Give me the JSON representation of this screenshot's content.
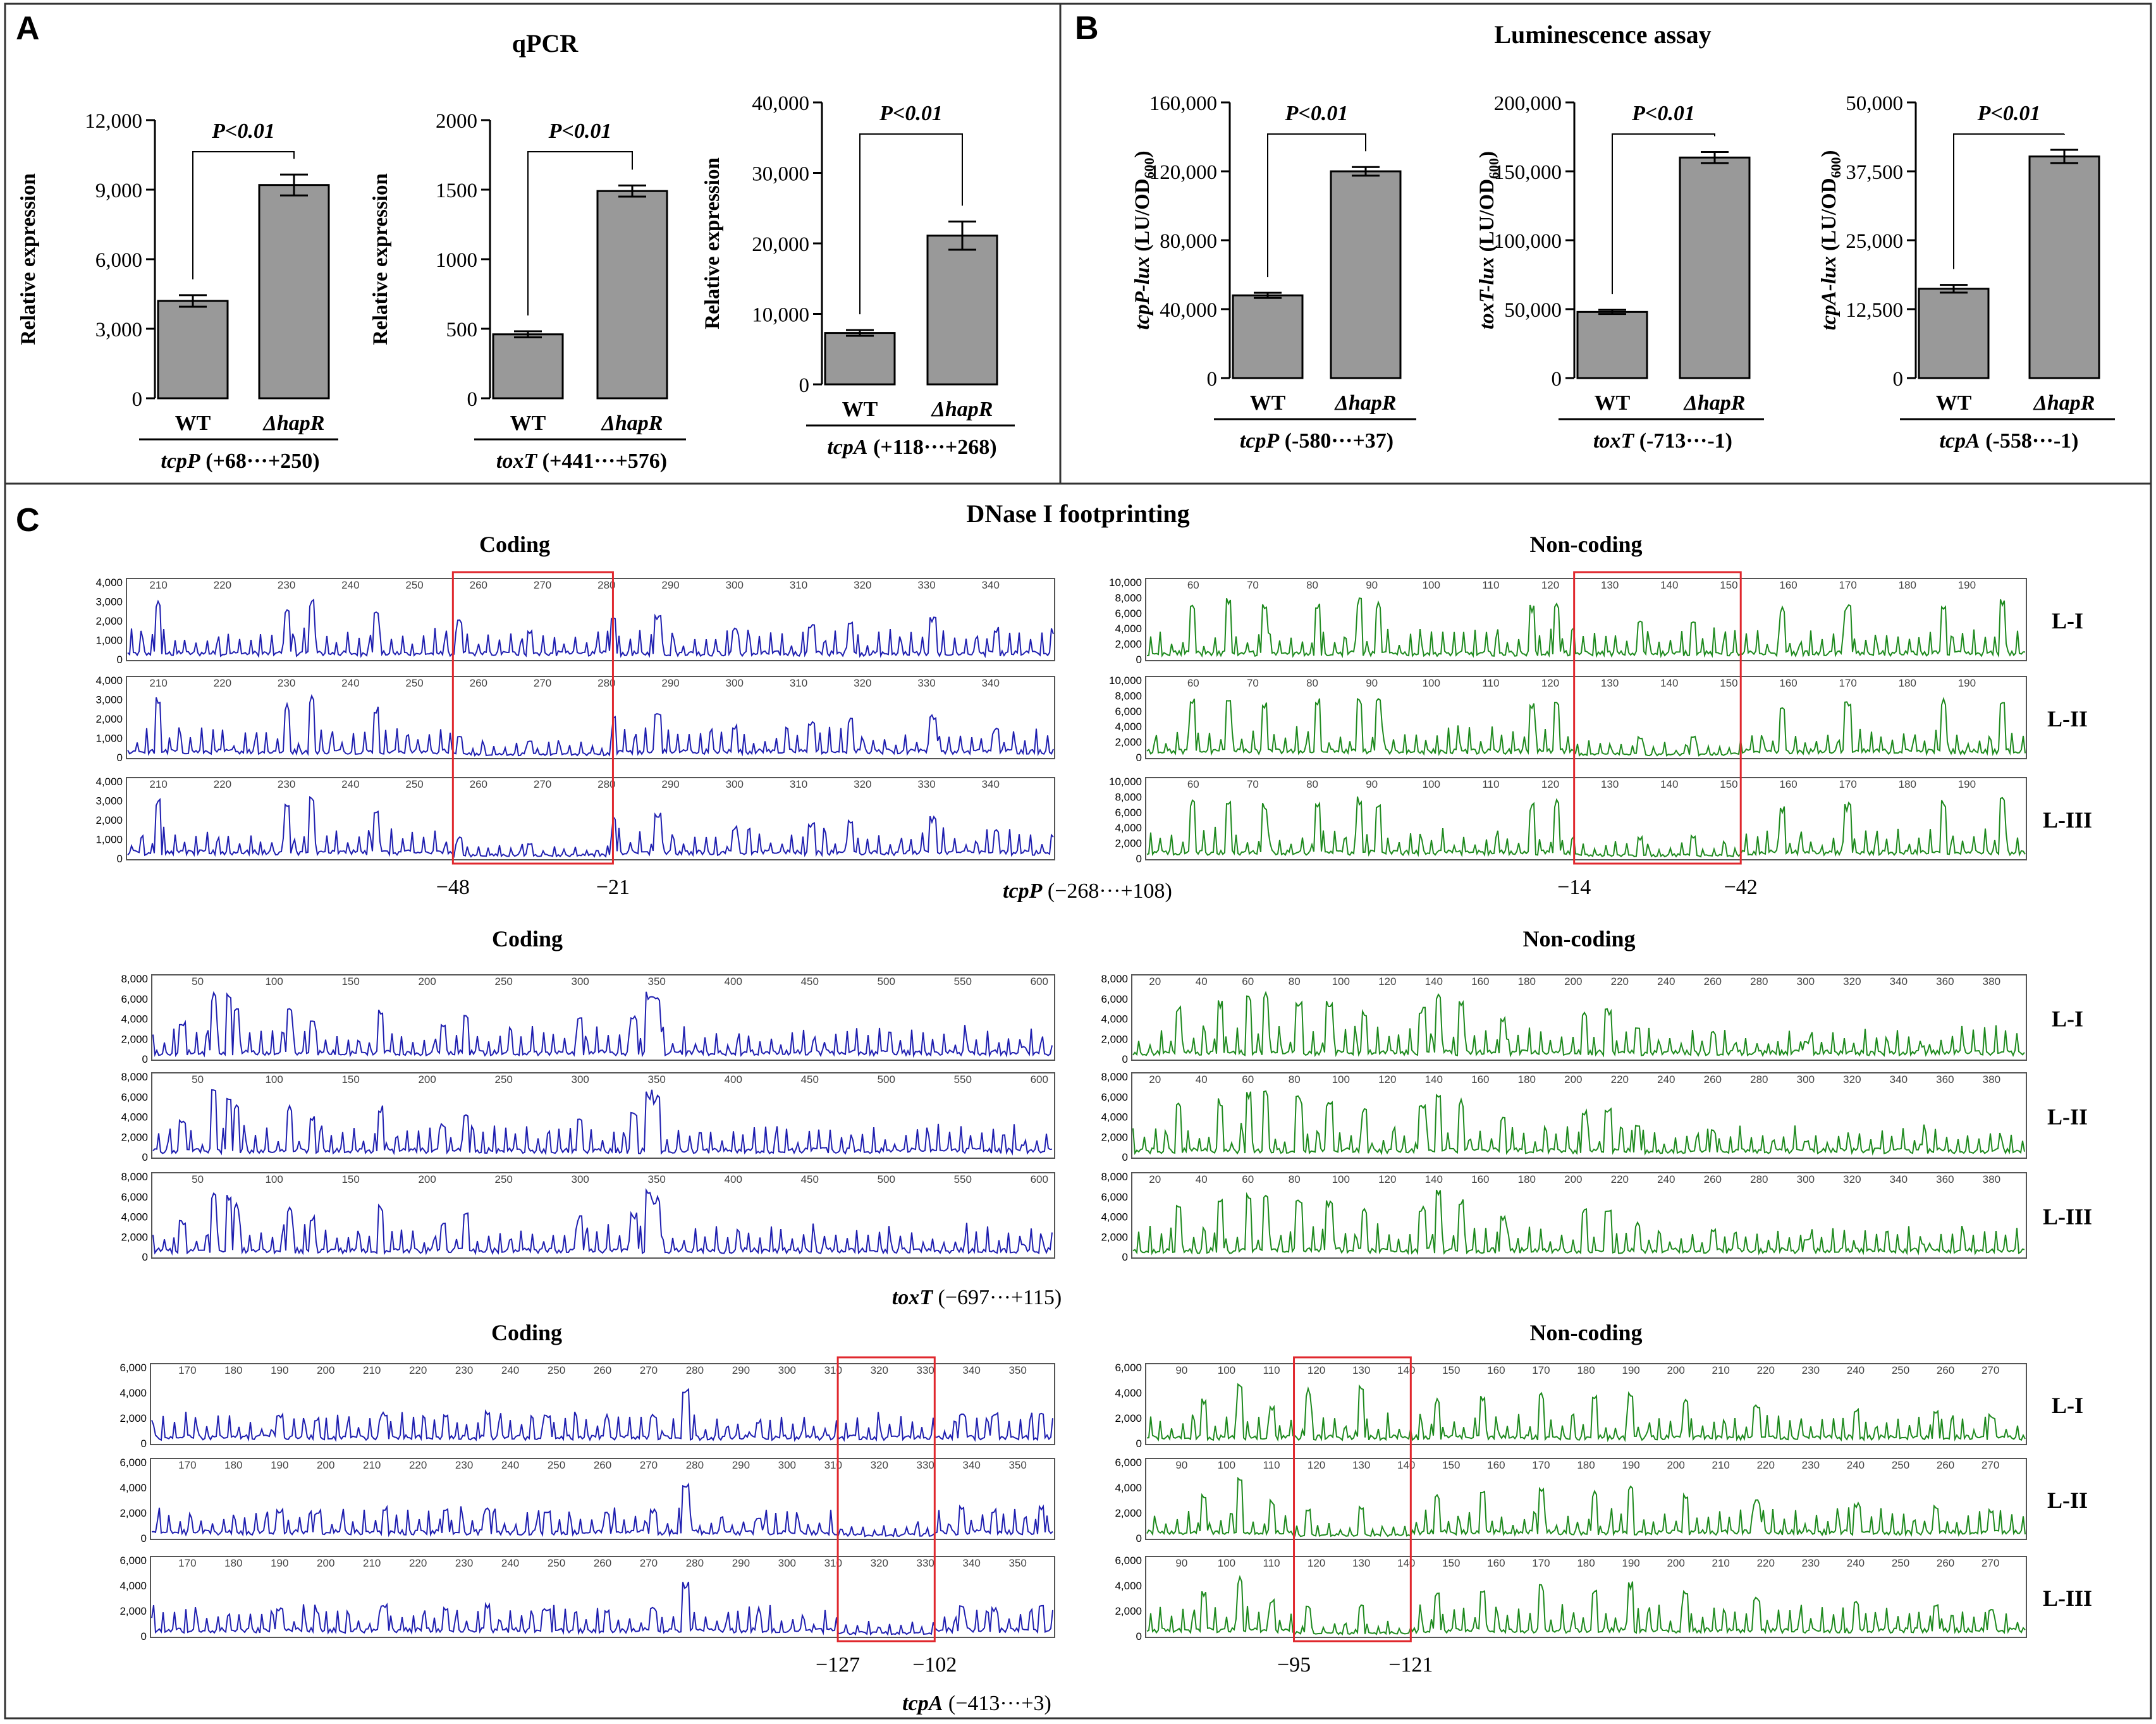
{
  "panel_letters": {
    "a": "A",
    "b": "B",
    "c": "C"
  },
  "panel_a_title": "qPCR",
  "panel_b_title": "Luminescence assay",
  "panel_c_title": "DNase I footprinting",
  "colors": {
    "bar_fill": "#999999",
    "coding_trace": "#1f1fb0",
    "noncoding_trace": "#1e8a1e",
    "highlight_box": "#e0282e",
    "frame": "#333333"
  },
  "chart_data": [
    {
      "type": "bar",
      "panel": "A",
      "title": "",
      "ylabel": "Relative expression",
      "categories": [
        "WT",
        "ΔhapR"
      ],
      "values": [
        4200,
        9200
      ],
      "errors": [
        250,
        450
      ],
      "ylim": [
        0,
        12000
      ],
      "yticks": [
        "0",
        "3,000",
        "6,000",
        "9,000",
        "12,000"
      ],
      "significance": "P<0.01",
      "gene": "tcpP",
      "region": "(+68···+250)"
    },
    {
      "type": "bar",
      "panel": "A",
      "title": "",
      "ylabel": "Relative expression",
      "categories": [
        "WT",
        "ΔhapR"
      ],
      "values": [
        460,
        1490
      ],
      "errors": [
        22,
        40
      ],
      "ylim": [
        0,
        2000
      ],
      "yticks": [
        "0",
        "500",
        "1000",
        "1500",
        "2000"
      ],
      "significance": "P<0.01",
      "gene": "toxT",
      "region": "(+441···+576)"
    },
    {
      "type": "bar",
      "panel": "A",
      "title": "",
      "ylabel": "Relative expression",
      "categories": [
        "WT",
        "ΔhapR"
      ],
      "values": [
        7300,
        21100
      ],
      "errors": [
        400,
        2000
      ],
      "ylim": [
        0,
        40000
      ],
      "yticks": [
        "0",
        "10,000",
        "20,000",
        "30,000",
        "40,000"
      ],
      "significance": "P<0.01",
      "gene": "tcpA",
      "region": "(+118···+268)"
    },
    {
      "type": "bar",
      "panel": "B",
      "title": "",
      "ylabel_gene": "tcpP-lux",
      "ylabel_unit": " (LU/OD",
      "ylabel_sub": "600",
      "ylabel_close": ")",
      "categories": [
        "WT",
        "ΔhapR"
      ],
      "values": [
        48000,
        120000
      ],
      "errors": [
        1500,
        2500
      ],
      "ylim": [
        0,
        160000
      ],
      "yticks": [
        "0",
        "40,000",
        "80,000",
        "120,000",
        "160,000"
      ],
      "significance": "P<0.01",
      "gene": "tcpP",
      "region": " (-580···+37)"
    },
    {
      "type": "bar",
      "panel": "B",
      "title": "",
      "ylabel_gene": "toxT-lux",
      "ylabel_unit": " (LU/OD",
      "ylabel_sub": "600",
      "ylabel_close": ")",
      "categories": [
        "WT",
        "ΔhapR"
      ],
      "values": [
        48000,
        160000
      ],
      "errors": [
        1500,
        4000
      ],
      "ylim": [
        0,
        200000
      ],
      "yticks": [
        "0",
        "50,000",
        "100,000",
        "150,000",
        "200,000"
      ],
      "significance": "P<0.01",
      "gene": "toxT",
      "region": "(-713···-1)"
    },
    {
      "type": "bar",
      "panel": "B",
      "title": "",
      "ylabel_gene": "tcpA-lux",
      "ylabel_unit": " (LU/OD",
      "ylabel_sub": "600",
      "ylabel_close": ")",
      "categories": [
        "WT",
        "ΔhapR"
      ],
      "values": [
        16200,
        40200
      ],
      "errors": [
        700,
        1200
      ],
      "ylim": [
        0,
        50000
      ],
      "yticks": [
        "0",
        "12,500",
        "25,000",
        "37,500",
        "50,000"
      ],
      "significance": "P<0.01",
      "gene": "tcpA",
      "region": " (-558···-1)"
    }
  ],
  "footprint_lane_labels": [
    "L-I",
    "L-II",
    "L-III"
  ],
  "footprints": [
    {
      "gene": "tcpP",
      "region": " (−268···+108)",
      "coding": {
        "title": "Coding",
        "yticks": [
          "0",
          "1,000",
          "2,000",
          "3,000",
          "4,000"
        ],
        "xticks": [
          "210",
          "220",
          "230",
          "240",
          "250",
          "260",
          "270",
          "280",
          "290",
          "300",
          "310",
          "320",
          "330",
          "340"
        ],
        "xlim": [
          205,
          350
        ],
        "box": [
          256,
          281
        ],
        "box_labels": [
          "−48",
          "−21"
        ],
        "peaks": [
          [
            210,
            0.92
          ],
          [
            230,
            0.82
          ],
          [
            234,
            0.95
          ],
          [
            244,
            0.78
          ],
          [
            257,
            0.6
          ],
          [
            268,
            0.45
          ],
          [
            281,
            0.65
          ],
          [
            288,
            0.7
          ],
          [
            300,
            0.5
          ],
          [
            312,
            0.55
          ],
          [
            318,
            0.6
          ],
          [
            331,
            0.65
          ],
          [
            341,
            0.45
          ]
        ]
      },
      "noncoding": {
        "title": "Non-coding",
        "yticks": [
          "0",
          "2,000",
          "4,000",
          "6,000",
          "8,000",
          "10,000"
        ],
        "xticks": [
          "60",
          "70",
          "80",
          "90",
          "100",
          "110",
          "120",
          "130",
          "140",
          "150",
          "160",
          "170",
          "180",
          "190"
        ],
        "xlim": [
          52,
          200
        ],
        "box": [
          124,
          152
        ],
        "box_labels": [
          "−14",
          "−42"
        ],
        "peaks": [
          [
            60,
            0.9
          ],
          [
            66,
            0.95
          ],
          [
            72,
            0.85
          ],
          [
            81,
            0.9
          ],
          [
            88,
            0.95
          ],
          [
            91,
            0.9
          ],
          [
            117,
            0.85
          ],
          [
            121,
            0.9
          ],
          [
            135,
            0.6
          ],
          [
            144,
            0.65
          ],
          [
            159,
            0.8
          ],
          [
            170,
            0.85
          ],
          [
            186,
            0.9
          ],
          [
            196,
            0.95
          ]
        ]
      }
    },
    {
      "gene": "toxT",
      "region": " (−697···+115)",
      "coding": {
        "title": "Coding",
        "yticks": [
          "0",
          "2,000",
          "4,000",
          "6,000",
          "8,000"
        ],
        "xticks": [
          "50",
          "100",
          "150",
          "200",
          "250",
          "300",
          "350",
          "400",
          "450",
          "500",
          "550",
          "600"
        ],
        "xlim": [
          20,
          610
        ],
        "box": null,
        "box_labels": [],
        "peaks": [
          [
            40,
            0.55
          ],
          [
            60,
            0.98
          ],
          [
            70,
            0.95
          ],
          [
            75,
            0.8
          ],
          [
            110,
            0.75
          ],
          [
            125,
            0.6
          ],
          [
            170,
            0.75
          ],
          [
            210,
            0.5
          ],
          [
            225,
            0.65
          ],
          [
            300,
            0.6
          ],
          [
            335,
            0.65
          ],
          [
            345,
            0.98
          ],
          [
            350,
            0.9
          ],
          [
            460,
            0.15
          ],
          [
            520,
            0.12
          ],
          [
            590,
            0.18
          ]
        ]
      },
      "noncoding": {
        "title": "Non-coding",
        "yticks": [
          "0",
          "2,000",
          "4,000",
          "6,000",
          "8,000"
        ],
        "xticks": [
          "20",
          "40",
          "60",
          "80",
          "100",
          "120",
          "140",
          "160",
          "180",
          "200",
          "220",
          "240",
          "260",
          "280",
          "300",
          "320",
          "340",
          "360",
          "380"
        ],
        "xlim": [
          10,
          395
        ],
        "box": null,
        "box_labels": [],
        "peaks": [
          [
            30,
            0.8
          ],
          [
            48,
            0.85
          ],
          [
            60,
            0.95
          ],
          [
            68,
            0.98
          ],
          [
            82,
            0.9
          ],
          [
            95,
            0.85
          ],
          [
            110,
            0.7
          ],
          [
            135,
            0.75
          ],
          [
            142,
            0.98
          ],
          [
            152,
            0.85
          ],
          [
            170,
            0.6
          ],
          [
            205,
            0.7
          ],
          [
            215,
            0.75
          ],
          [
            228,
            0.5
          ],
          [
            260,
            0.4
          ],
          [
            300,
            0.25
          ],
          [
            350,
            0.2
          ]
        ]
      }
    },
    {
      "gene": "tcpA",
      "region": " (−413···+3)",
      "coding": {
        "title": "Coding",
        "yticks": [
          "0",
          "2,000",
          "4,000",
          "6,000"
        ],
        "xticks": [
          "170",
          "180",
          "190",
          "200",
          "210",
          "220",
          "230",
          "240",
          "250",
          "260",
          "270",
          "280",
          "290",
          "300",
          "310",
          "320",
          "330",
          "340",
          "350"
        ],
        "xlim": [
          162,
          358
        ],
        "box": [
          311,
          332
        ],
        "box_labels": [
          "−127",
          "−102"
        ],
        "peaks": [
          [
            190,
            0.45
          ],
          [
            198,
            0.4
          ],
          [
            213,
            0.5
          ],
          [
            226,
            0.45
          ],
          [
            235,
            0.5
          ],
          [
            248,
            0.45
          ],
          [
            261,
            0.4
          ],
          [
            271,
            0.45
          ],
          [
            278,
            0.85
          ],
          [
            294,
            0.35
          ],
          [
            338,
            0.5
          ],
          [
            345,
            0.45
          ],
          [
            355,
            0.5
          ]
        ]
      },
      "noncoding": {
        "title": "Non-coding",
        "yticks": [
          "0",
          "2,000",
          "4,000",
          "6,000"
        ],
        "xticks": [
          "90",
          "100",
          "110",
          "120",
          "130",
          "140",
          "150",
          "160",
          "170",
          "180",
          "190",
          "200",
          "210",
          "220",
          "230",
          "240",
          "250",
          "260",
          "270"
        ],
        "xlim": [
          82,
          278
        ],
        "box": [
          115,
          141
        ],
        "box_labels": [
          "−95",
          "−121"
        ],
        "peaks": [
          [
            95,
            0.7
          ],
          [
            103,
            0.95
          ],
          [
            110,
            0.6
          ],
          [
            118,
            0.85
          ],
          [
            130,
            0.9
          ],
          [
            147,
            0.7
          ],
          [
            157,
            0.75
          ],
          [
            170,
            0.8
          ],
          [
            182,
            0.75
          ],
          [
            190,
            0.85
          ],
          [
            202,
            0.7
          ],
          [
            218,
            0.6
          ],
          [
            240,
            0.55
          ],
          [
            258,
            0.5
          ],
          [
            270,
            0.45
          ]
        ]
      }
    }
  ]
}
